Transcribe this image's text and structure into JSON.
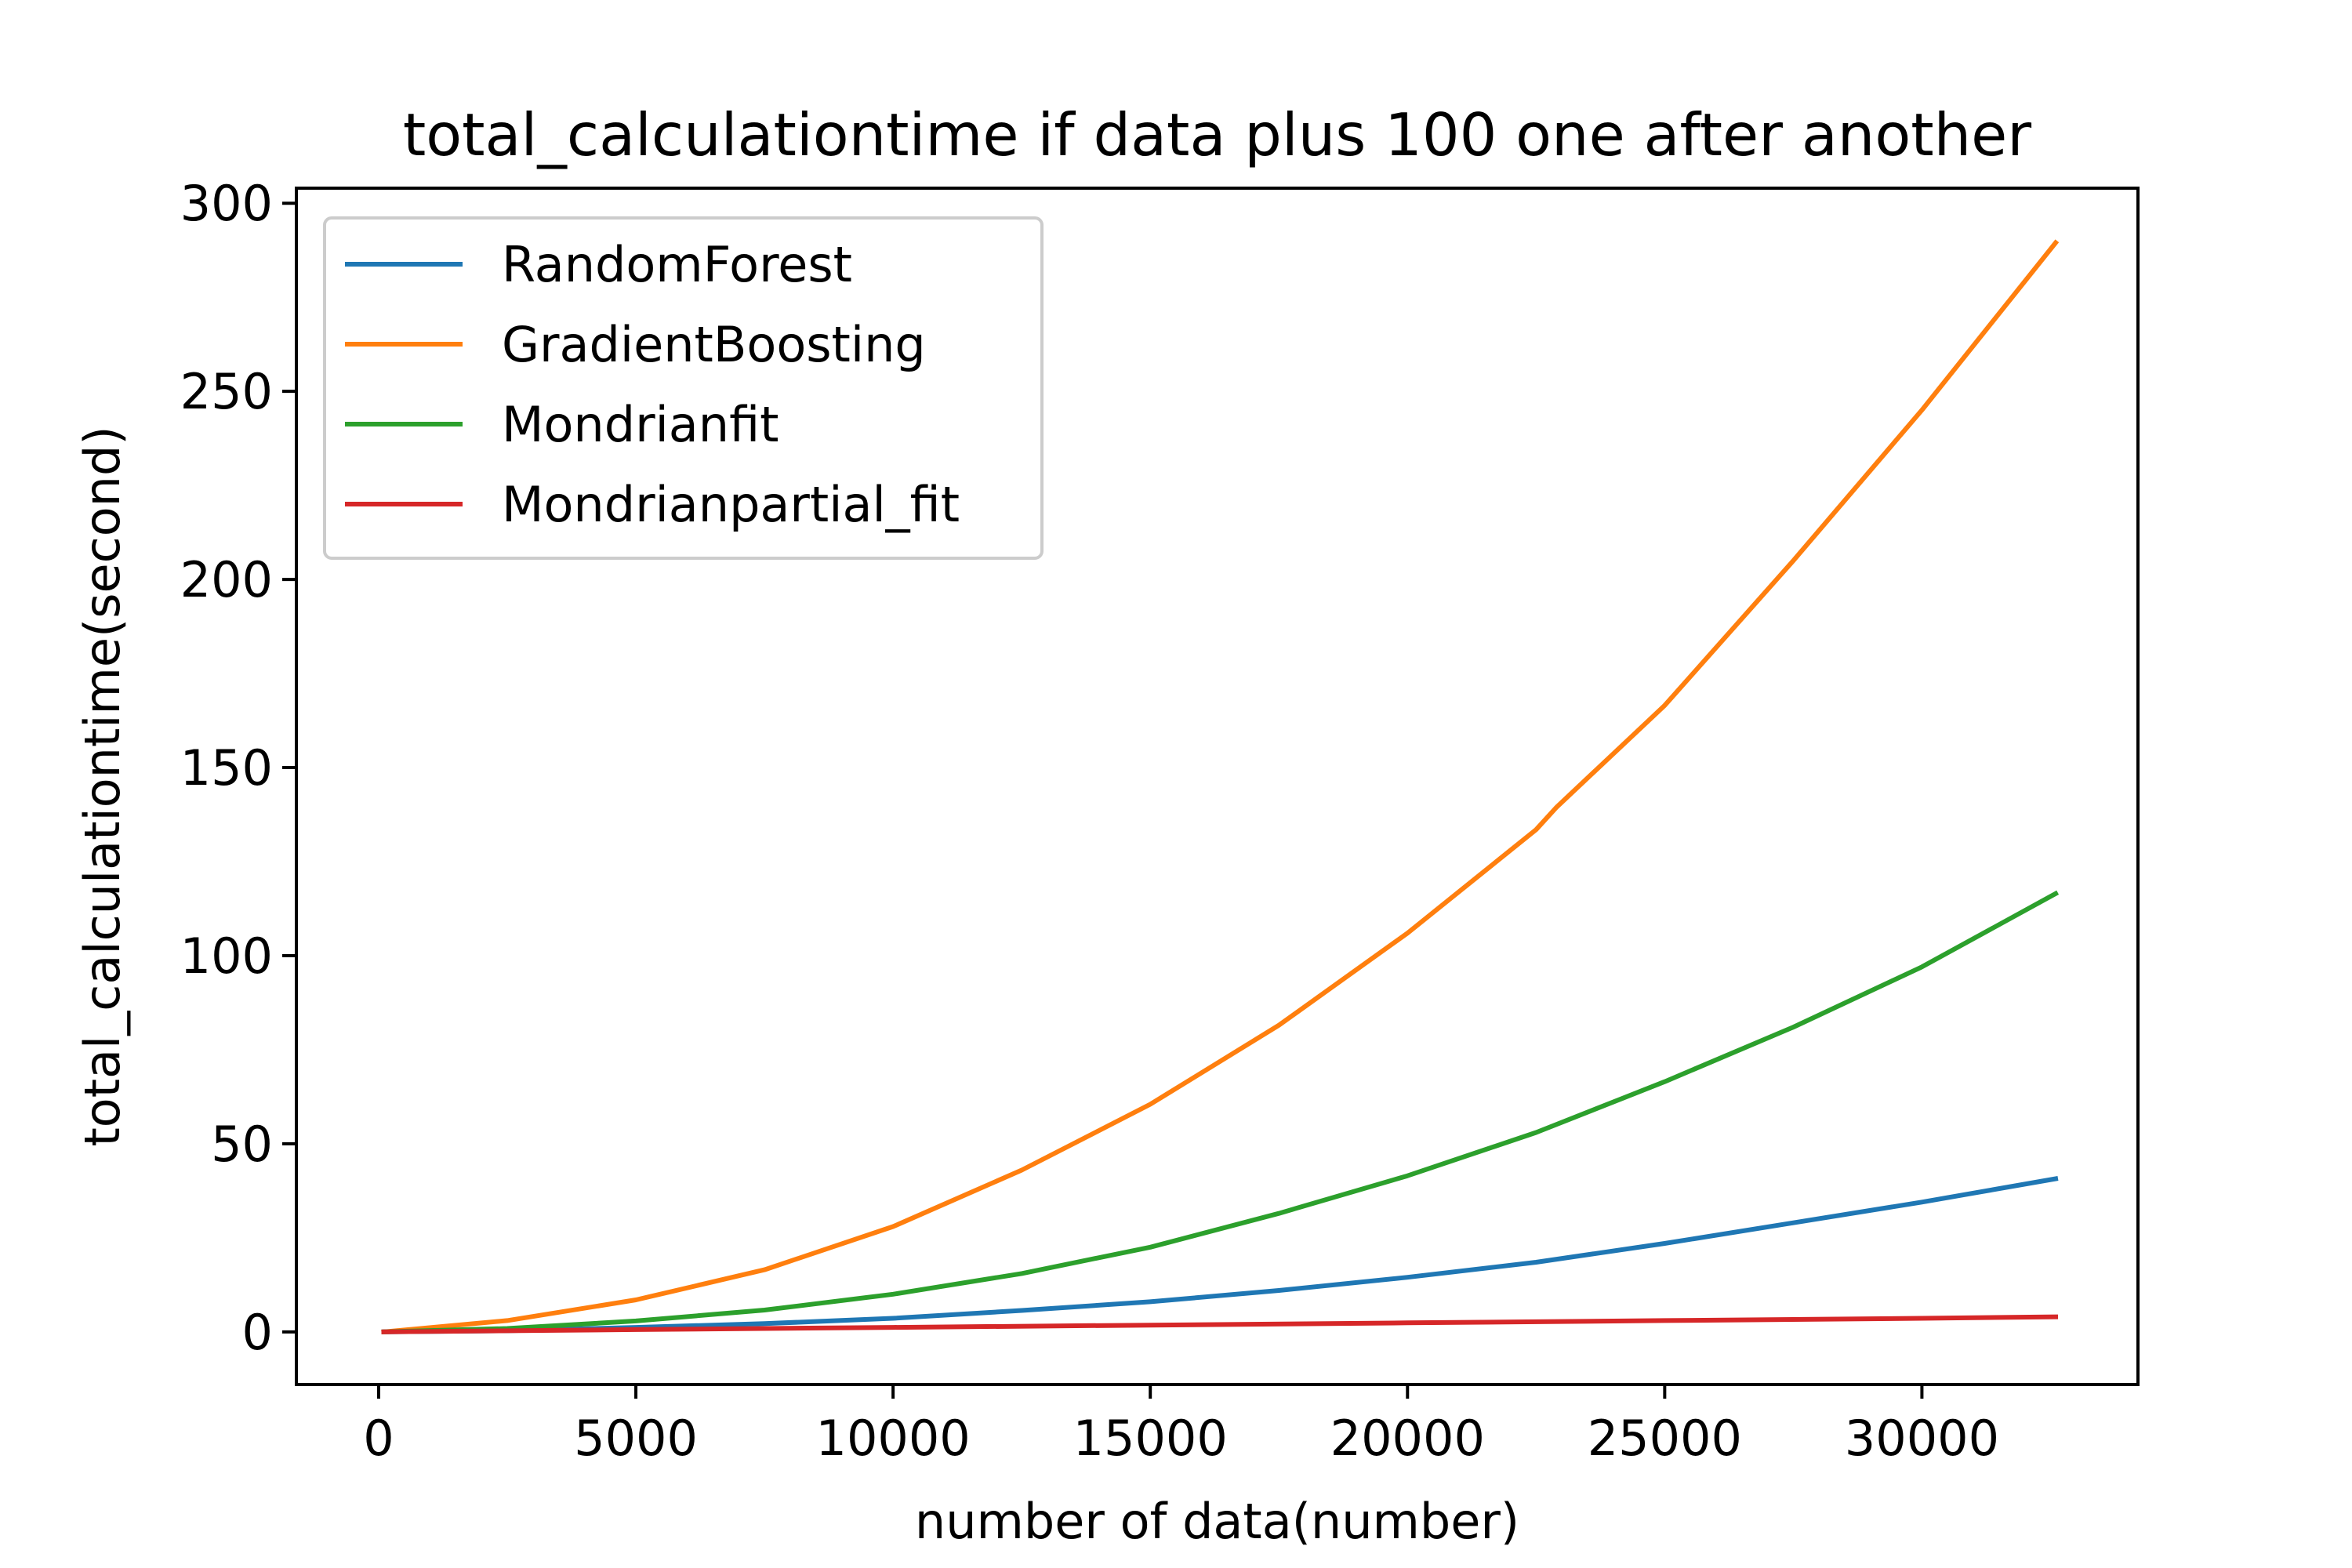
{
  "chart_data": {
    "type": "line",
    "title": "total_calculationtime if data plus 100 one after another",
    "xlabel": "number of data(number)",
    "ylabel": "total_calculationtime(second)",
    "xlim": [
      -1600,
      34200
    ],
    "ylim": [
      -14,
      304
    ],
    "xticks": [
      0,
      5000,
      10000,
      15000,
      20000,
      25000,
      30000
    ],
    "xtick_labels": [
      "0",
      "5000",
      "10000",
      "15000",
      "20000",
      "25000",
      "30000"
    ],
    "yticks": [
      0,
      50,
      100,
      150,
      200,
      250,
      300
    ],
    "ytick_labels": [
      "0",
      "50",
      "100",
      "150",
      "200",
      "250",
      "300"
    ],
    "grid": false,
    "legend_position": "upper-left",
    "series": [
      {
        "name": "RandomForest",
        "color": "#1f77b4",
        "x": [
          100,
          2500,
          5000,
          7500,
          10000,
          12500,
          15000,
          17500,
          20000,
          22500,
          25000,
          27500,
          30000,
          32600
        ],
        "y": [
          0,
          0.3,
          1.2,
          2.2,
          3.6,
          5.7,
          8.0,
          11.0,
          14.5,
          18.5,
          23.5,
          29.0,
          34.5,
          40.7
        ]
      },
      {
        "name": "GradientBoosting",
        "color": "#ff7f0e",
        "x": [
          100,
          2500,
          5000,
          7500,
          10000,
          12500,
          15000,
          17500,
          20000,
          22500,
          22900,
          25000,
          27500,
          30000,
          32600
        ],
        "y": [
          0,
          3.0,
          8.5,
          16.5,
          28.0,
          43.0,
          60.5,
          81.5,
          106.0,
          133.5,
          139.5,
          166.5,
          205.0,
          245.0,
          289.5
        ]
      },
      {
        "name": "Mondrianfit",
        "color": "#2ca02c",
        "x": [
          100,
          2500,
          5000,
          7500,
          10000,
          12500,
          15000,
          17500,
          20000,
          22500,
          25000,
          27500,
          30000,
          32600
        ],
        "y": [
          0,
          0.9,
          2.9,
          5.8,
          10.0,
          15.5,
          22.5,
          31.5,
          41.5,
          53.0,
          66.5,
          81.0,
          97.0,
          116.5
        ]
      },
      {
        "name": "Mondrianpartial_fit",
        "color": "#d62728",
        "x": [
          100,
          5000,
          10000,
          15000,
          20000,
          25000,
          30000,
          32600
        ],
        "y": [
          0,
          0.6,
          1.2,
          1.8,
          2.4,
          3.0,
          3.6,
          4.0
        ]
      }
    ]
  }
}
